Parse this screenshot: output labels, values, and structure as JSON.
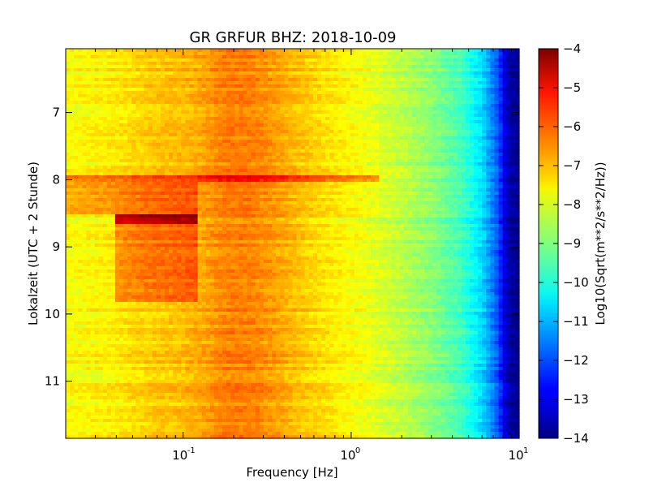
{
  "chart_data": {
    "type": "heatmap",
    "title": "GR GRFUR BHZ: 2018-10-09",
    "xlabel": "Frequency [Hz]",
    "ylabel": "Lokalzeit (UTC + 2 Stunde)",
    "colorbar_label": "Log10(Sqrt(m**2/s**2/Hz))",
    "x_scale": "log",
    "xlim": [
      0.02,
      10
    ],
    "ylim": [
      11.85,
      6.05
    ],
    "y_inverted": true,
    "x_ticks": [
      {
        "value": 0.1,
        "base": "10",
        "exp": "-1"
      },
      {
        "value": 1,
        "base": "10",
        "exp": "0"
      },
      {
        "value": 10,
        "base": "10",
        "exp": "1"
      }
    ],
    "y_ticks": [
      {
        "value": 7,
        "label": "7"
      },
      {
        "value": 8,
        "label": "8"
      },
      {
        "value": 9,
        "label": "9"
      },
      {
        "value": 10,
        "label": "10"
      },
      {
        "value": 11,
        "label": "11"
      }
    ],
    "colorbar_range": [
      -14,
      -4
    ],
    "colorbar_ticks": [
      {
        "value": -4,
        "label": "−4"
      },
      {
        "value": -5,
        "label": "−5"
      },
      {
        "value": -6,
        "label": "−6"
      },
      {
        "value": -7,
        "label": "−7"
      },
      {
        "value": -8,
        "label": "−8"
      },
      {
        "value": -9,
        "label": "−9"
      },
      {
        "value": -10,
        "label": "−10"
      },
      {
        "value": -11,
        "label": "−11"
      },
      {
        "value": -12,
        "label": "−12"
      },
      {
        "value": -13,
        "label": "−13"
      },
      {
        "value": -14,
        "label": "−14"
      }
    ],
    "colormap": "jet",
    "frequency_profile": [
      {
        "freq": 0.02,
        "value": -7.8
      },
      {
        "freq": 0.04,
        "value": -7.6
      },
      {
        "freq": 0.06,
        "value": -7.3
      },
      {
        "freq": 0.1,
        "value": -7.1
      },
      {
        "freq": 0.13,
        "value": -6.9
      },
      {
        "freq": 0.18,
        "value": -6.5
      },
      {
        "freq": 0.25,
        "value": -6.5
      },
      {
        "freq": 0.35,
        "value": -6.8
      },
      {
        "freq": 0.5,
        "value": -7.2
      },
      {
        "freq": 0.8,
        "value": -7.6
      },
      {
        "freq": 1.2,
        "value": -7.9
      },
      {
        "freq": 2,
        "value": -8.4
      },
      {
        "freq": 3,
        "value": -8.9
      },
      {
        "freq": 4.5,
        "value": -9.6
      },
      {
        "freq": 6,
        "value": -10.6
      },
      {
        "freq": 7.5,
        "value": -12
      },
      {
        "freq": 8.5,
        "value": -13.5
      },
      {
        "freq": 10,
        "value": -14
      }
    ],
    "events": [
      {
        "time_start": 7.95,
        "time_end": 8.05,
        "freq_max": 1.5,
        "boost": 1.3
      },
      {
        "time_start": 8.5,
        "time_end": 8.65,
        "freq_min": 0.04,
        "freq_max": 0.12,
        "boost": 2.0
      },
      {
        "time_start": 8.05,
        "time_end": 9.8,
        "freq_min": 0.04,
        "freq_max": 0.12,
        "boost": 0.9
      },
      {
        "time_start": 8.05,
        "time_end": 8.5,
        "freq_min": 0.02,
        "freq_max": 0.04,
        "boost": 0.8
      }
    ]
  }
}
